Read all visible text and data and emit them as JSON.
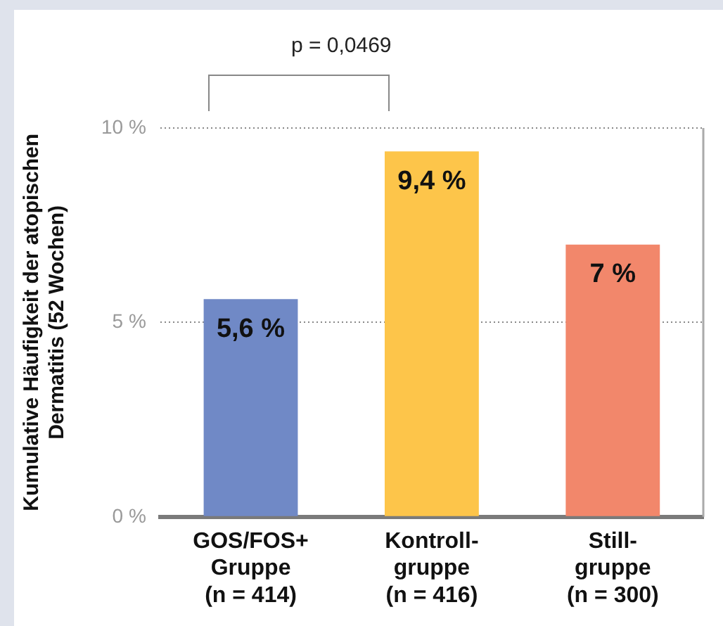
{
  "chart_data": {
    "type": "bar",
    "ylabel": "Kumulative Häufigkeit der atopischen\nDermatitis (52 Wochen)",
    "categories": [
      "GOS/FOS+\nGruppe\n(n = 414)",
      "Kontroll-\ngruppe\n(n = 416)",
      "Still-\ngruppe\n(n = 300)"
    ],
    "values": [
      5.6,
      9.4,
      7
    ],
    "colors": [
      "#7089c6",
      "#fdc54a",
      "#f2876b"
    ],
    "value_labels": [
      "5,6 %",
      "9,4 %",
      "7 %"
    ],
    "ylim": [
      0,
      10
    ],
    "yticks": [
      {
        "value": 0,
        "label": "0 %"
      },
      {
        "value": 5,
        "label": "5 %"
      },
      {
        "value": 10,
        "label": "10 %"
      }
    ],
    "grid": "y",
    "legend": false,
    "annotations": [
      "p = 0,0469"
    ]
  }
}
